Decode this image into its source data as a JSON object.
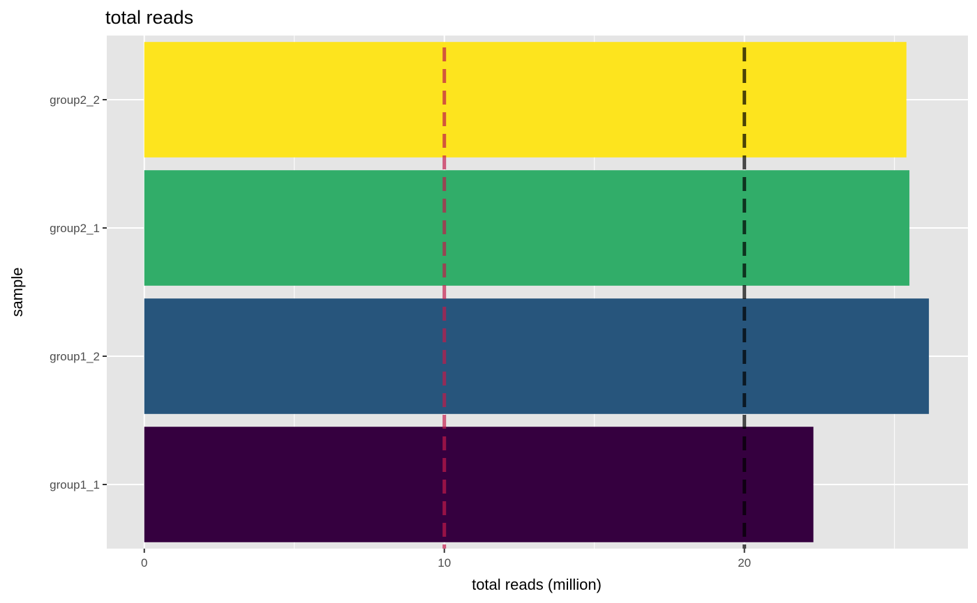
{
  "chart_data": {
    "type": "bar",
    "orientation": "horizontal",
    "title": "total reads",
    "xlabel": "total reads (million)",
    "ylabel": "sample",
    "categories": [
      "group1_1",
      "group1_2",
      "group2_1",
      "group2_2"
    ],
    "values": [
      22.3,
      26.15,
      25.5,
      25.4
    ],
    "bar_colors": [
      "#35003f",
      "#27557c",
      "#31ad69",
      "#fde41e"
    ],
    "x_ticks": [
      0,
      10,
      20
    ],
    "xlim": [
      -1.25,
      27.45
    ],
    "grid": true,
    "background": "#e5e5e5",
    "reference_lines": [
      {
        "x": 10,
        "color": "#c11b4a",
        "style": "dashed"
      },
      {
        "x": 20,
        "color": "#000000",
        "style": "dashed"
      }
    ]
  }
}
